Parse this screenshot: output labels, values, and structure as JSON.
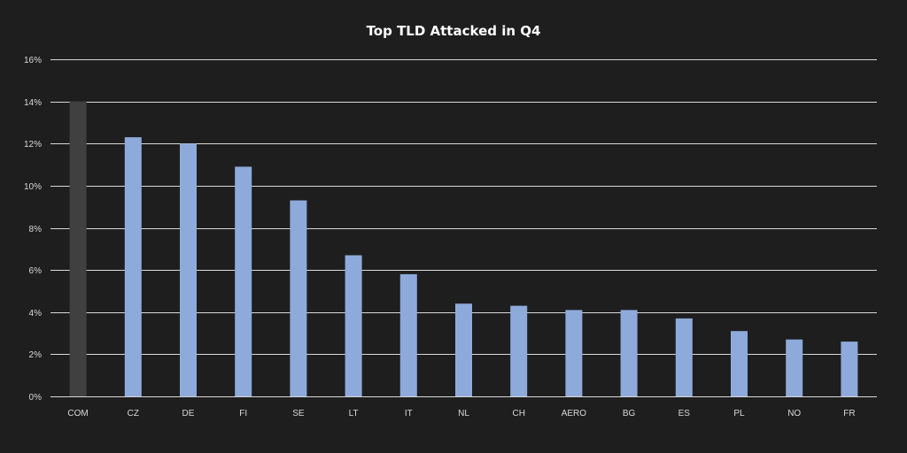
{
  "chart_data": {
    "type": "bar",
    "title": "Top TLD Attacked in Q4",
    "xlabel": "",
    "ylabel": "",
    "categories": [
      "COM",
      "CZ",
      "DE",
      "FI",
      "SE",
      "LT",
      "IT",
      "NL",
      "CH",
      "AERO",
      "BG",
      "ES",
      "PL",
      "NO",
      "FR"
    ],
    "values": [
      14.0,
      12.3,
      12.0,
      10.9,
      9.3,
      6.7,
      5.8,
      4.4,
      4.3,
      4.1,
      4.1,
      3.7,
      3.1,
      2.7,
      2.6
    ],
    "unit": "%",
    "ylim": [
      0,
      16
    ],
    "yticks": [
      0,
      2,
      4,
      6,
      8,
      10,
      12,
      14,
      16
    ],
    "ytick_labels": [
      "0%",
      "2%",
      "4%",
      "6%",
      "8%",
      "10%",
      "12%",
      "14%",
      "16%"
    ],
    "grid": true,
    "legend": "none",
    "colors": {
      "background": "#1e1e1e",
      "bar": "#8eaadb",
      "highlight_bar": "#404040",
      "gridline": "#d9d9d9",
      "text": "#d9d9d9",
      "title": "#ffffff"
    },
    "highlight_index": 0
  }
}
